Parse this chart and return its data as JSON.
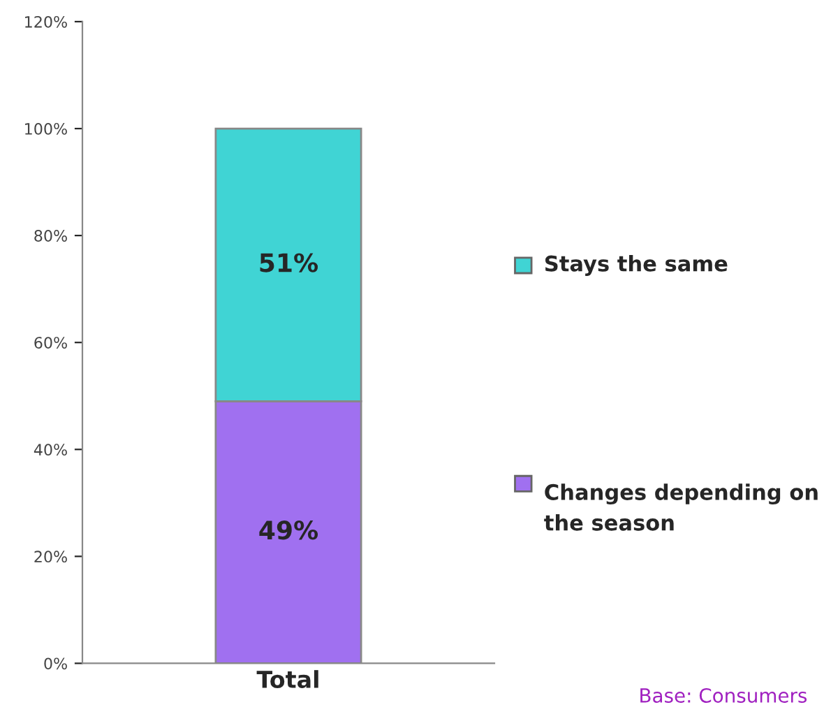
{
  "chart_data": {
    "type": "bar",
    "stacked": true,
    "categories": [
      "Total"
    ],
    "series": [
      {
        "name": "Changes depending on the season",
        "color": "#a070f0",
        "values": [
          49
        ],
        "value_labels": [
          "49%"
        ]
      },
      {
        "name": "Stays the same",
        "color": "#40d4d4",
        "values": [
          51
        ],
        "value_labels": [
          "51%"
        ]
      }
    ],
    "ylim": [
      0,
      120
    ],
    "yticks": [
      {
        "value": 0,
        "label": "0%"
      },
      {
        "value": 20,
        "label": "20%"
      },
      {
        "value": 40,
        "label": "40%"
      },
      {
        "value": 60,
        "label": "60%"
      },
      {
        "value": 80,
        "label": "80%"
      },
      {
        "value": 100,
        "label": "100%"
      },
      {
        "value": 120,
        "label": "120%"
      }
    ],
    "legend": "right",
    "annotations": [
      "Base: Consumers"
    ]
  }
}
